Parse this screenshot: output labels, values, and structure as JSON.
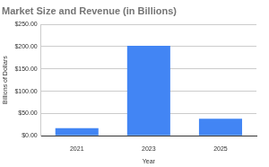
{
  "chart_data": {
    "type": "bar",
    "title": "Market Size and Revenue (in Billions)",
    "x_label": "Year",
    "y_label": "Billions of Dollars",
    "categories": [
      "2021",
      "2023",
      "2025"
    ],
    "values": [
      17,
      202,
      38
    ],
    "color": "#4285f4",
    "ylim": [
      0,
      250
    ],
    "yticks": [
      {
        "value": 0,
        "label": "$0.00"
      },
      {
        "value": 50,
        "label": "$50.00"
      },
      {
        "value": 100,
        "label": "$100.00"
      },
      {
        "value": 150,
        "label": "$150.00"
      },
      {
        "value": 200,
        "label": "$200.00"
      },
      {
        "value": 250,
        "label": "$250.00"
      }
    ],
    "grid": true
  }
}
